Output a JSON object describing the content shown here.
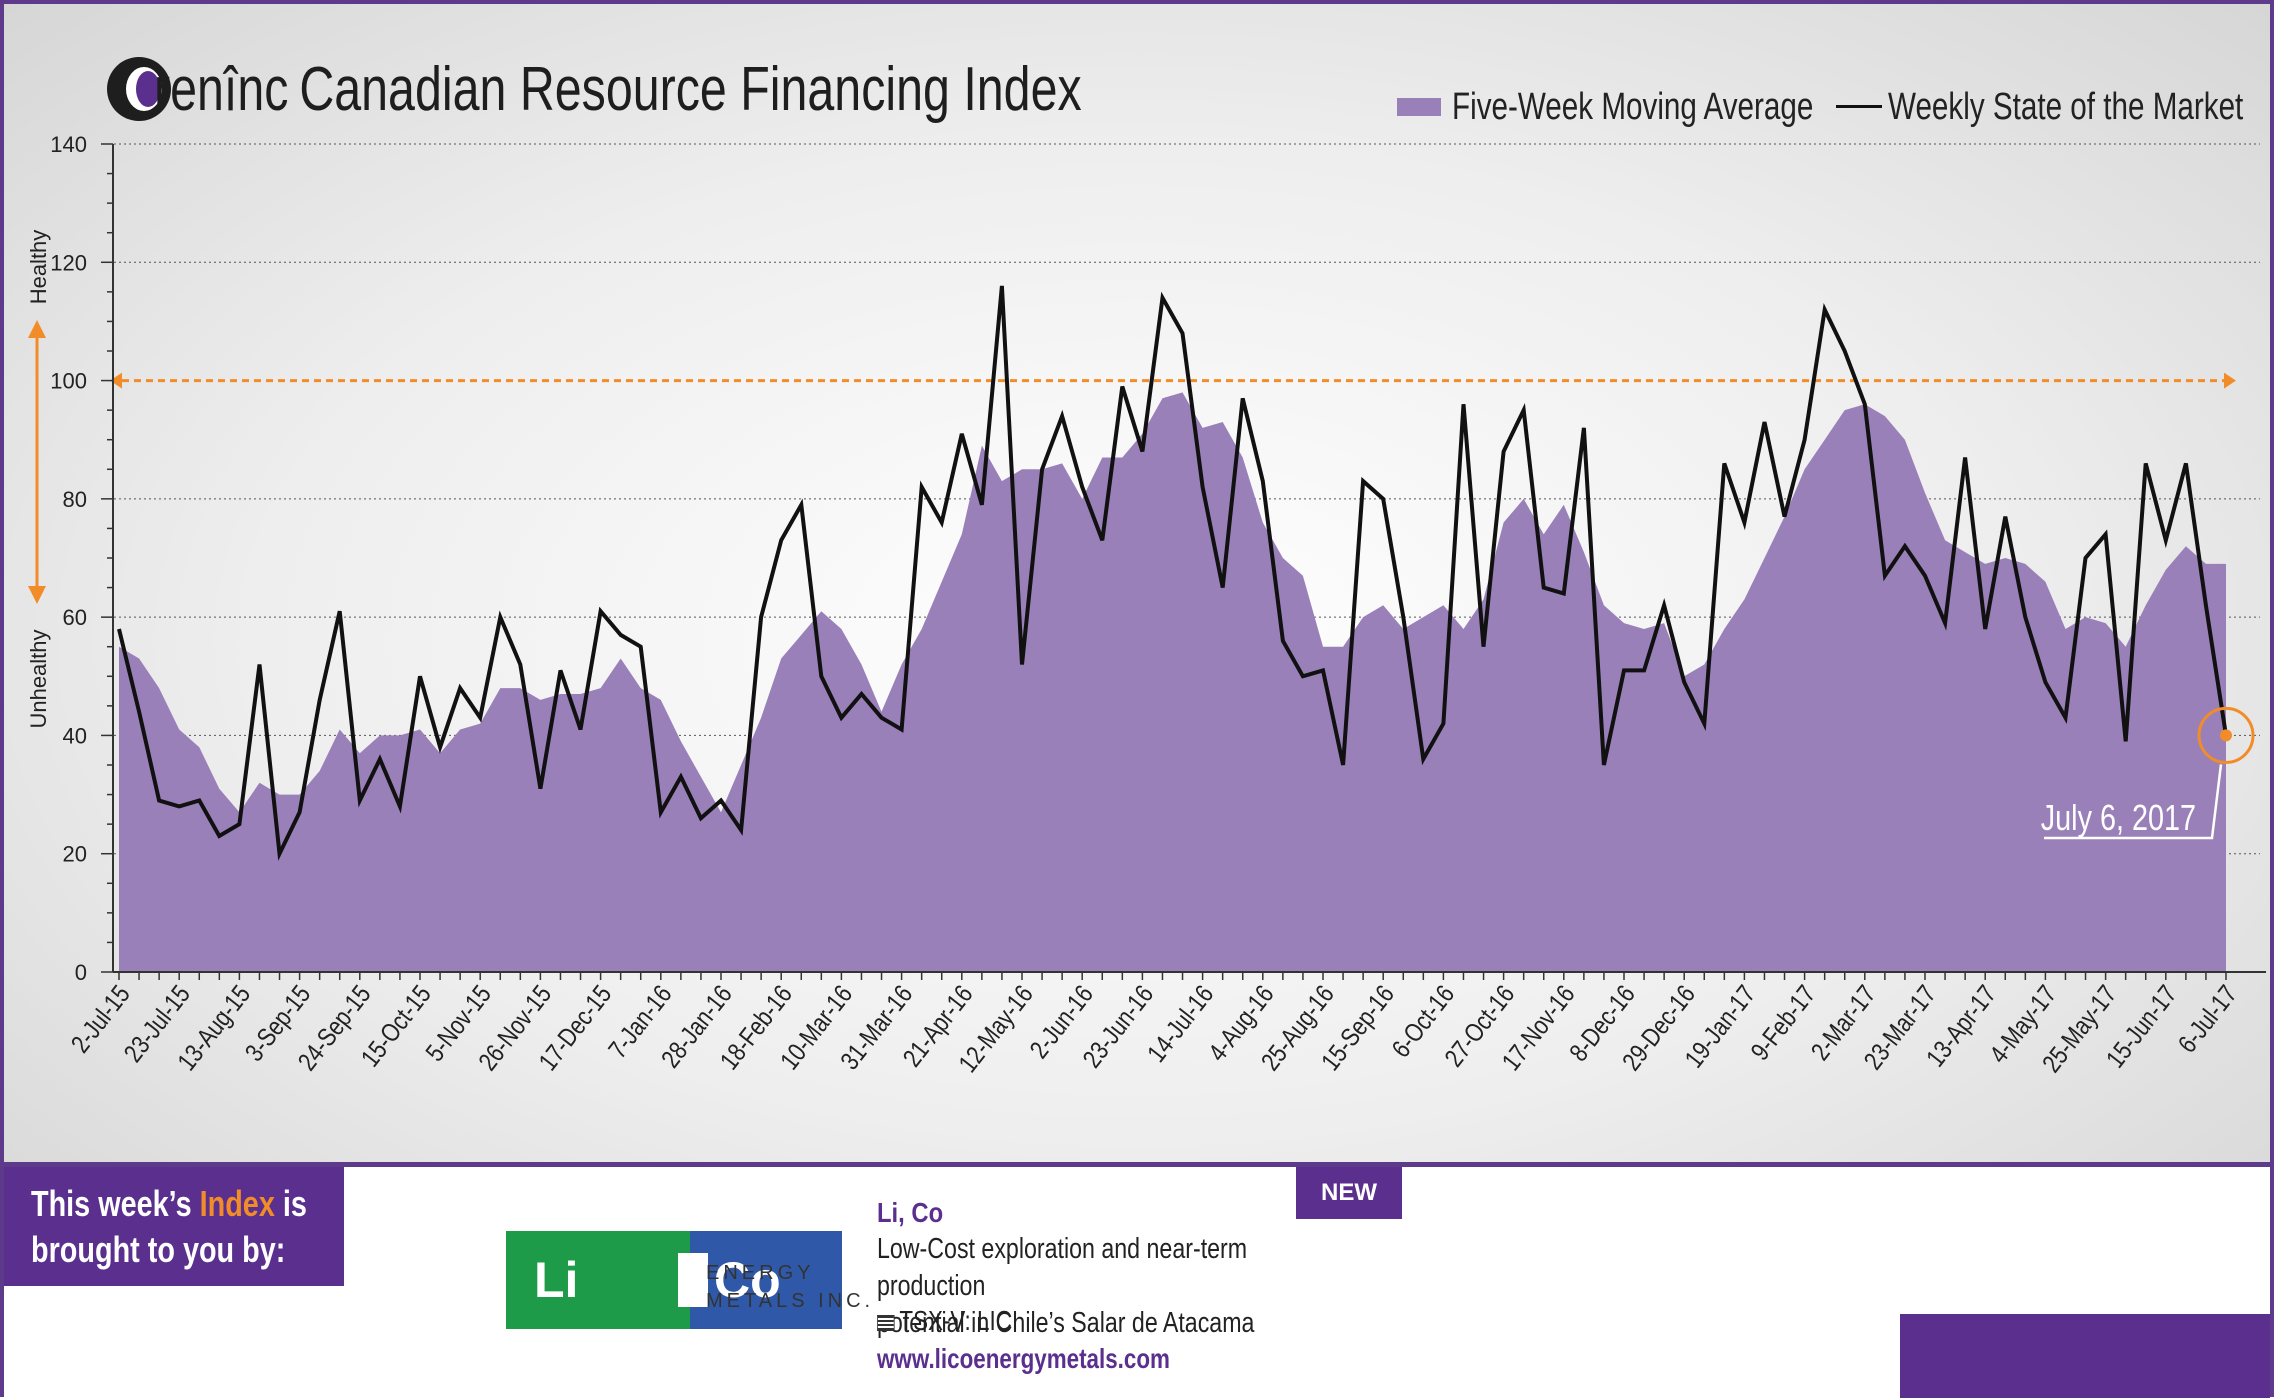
{
  "header": {
    "brand": "renînc",
    "title": "Canadian Resource Financing Index"
  },
  "legend": {
    "area_label": "Five-Week Moving Average",
    "line_label": "Weekly State of the Market"
  },
  "colors": {
    "area_fill": "#9a80b9",
    "line": "#111111",
    "threshold": "#f28c28",
    "brand_purple": "#5a2f8e"
  },
  "chart_data": {
    "type": "line",
    "ylim": [
      0,
      140
    ],
    "yticks": [
      0,
      20,
      40,
      60,
      80,
      100,
      120,
      140
    ],
    "y_health_labels": {
      "top": "Healthy",
      "bottom": "Unhealthy"
    },
    "threshold_value": 100,
    "grid": true,
    "legend_position": "top-right",
    "x_tick_labels": [
      "2-Jul-15",
      "23-Jul-15",
      "13-Aug-15",
      "3-Sep-15",
      "24-Sep-15",
      "15-Oct-15",
      "5-Nov-15",
      "26-Nov-15",
      "17-Dec-15",
      "7-Jan-16",
      "28-Jan-16",
      "18-Feb-16",
      "10-Mar-16",
      "31-Mar-16",
      "21-Apr-16",
      "12-May-16",
      "2-Jun-16",
      "23-Jun-16",
      "14-Jul-16",
      "4-Aug-16",
      "25-Aug-16",
      "15-Sep-16",
      "6-Oct-16",
      "27-Oct-16",
      "17-Nov-16",
      "8-Dec-16",
      "29-Dec-16",
      "19-Jan-17",
      "9-Feb-17",
      "2-Mar-17",
      "23-Mar-17",
      "13-Apr-17",
      "4-May-17",
      "25-May-17",
      "15-Jun-17",
      "6-Jul-17"
    ],
    "annotation": {
      "label": "July 6, 2017",
      "value": 40
    },
    "series": [
      {
        "name": "Weekly State of the Market",
        "kind": "line",
        "values": [
          58,
          44,
          29,
          28,
          29,
          23,
          25,
          52,
          20,
          27,
          46,
          61,
          29,
          36,
          28,
          50,
          38,
          48,
          43,
          60,
          52,
          31,
          51,
          41,
          61,
          57,
          55,
          27,
          33,
          26,
          29,
          24,
          60,
          73,
          79,
          50,
          43,
          47,
          43,
          41,
          82,
          76,
          91,
          79,
          116,
          52,
          85,
          94,
          82,
          73,
          99,
          88,
          114,
          108,
          82,
          65,
          97,
          83,
          56,
          50,
          51,
          35,
          83,
          80,
          60,
          36,
          42,
          96,
          55,
          88,
          95,
          65,
          64,
          92,
          35,
          51,
          51,
          62,
          49,
          42,
          86,
          76,
          93,
          77,
          90,
          112,
          105,
          96,
          67,
          72,
          67,
          59,
          87,
          58,
          77,
          60,
          49,
          43,
          70,
          74,
          39,
          86,
          73,
          86,
          62,
          40
        ]
      },
      {
        "name": "Five-Week Moving Average",
        "kind": "area",
        "values": [
          55,
          53,
          48,
          41,
          38,
          31,
          27,
          32,
          30,
          30,
          34,
          41,
          37,
          40,
          40,
          41,
          37,
          41,
          42,
          48,
          48,
          46,
          47,
          47,
          48,
          53,
          48,
          46,
          39,
          33,
          27,
          35,
          43,
          53,
          57,
          61,
          58,
          52,
          44,
          52,
          58,
          66,
          74,
          89,
          83,
          85,
          85,
          86,
          80,
          87,
          87,
          91,
          97,
          98,
          92,
          93,
          87,
          76,
          70,
          67,
          55,
          55,
          60,
          62,
          58,
          60,
          62,
          58,
          63,
          76,
          80,
          74,
          79,
          71,
          62,
          59,
          58,
          59,
          50,
          52,
          58,
          63,
          70,
          77,
          85,
          90,
          95,
          96,
          94,
          90,
          81,
          73,
          71,
          69,
          70,
          69,
          66,
          58,
          60,
          59,
          55,
          62,
          68,
          72,
          69,
          69
        ]
      }
    ]
  },
  "annotation_text": "July 6, 2017",
  "sponsor": {
    "lead_prefix": "This week’s ",
    "lead_accent": "Index",
    "lead_suffix": " is",
    "lead_line2": "brought to you by:",
    "badge": "NEW",
    "logo_li": "Li",
    "logo_co": "Co",
    "logo_energy": "ENERGY",
    "logo_metals": "METALS INC.",
    "name": "Li, Co",
    "description": "Low-Cost exploration and near-term production\npotential in Chile’s Salar de Atacama",
    "ticker": "TSX-V: LIC",
    "url": "www.licoenergymetals.com"
  }
}
